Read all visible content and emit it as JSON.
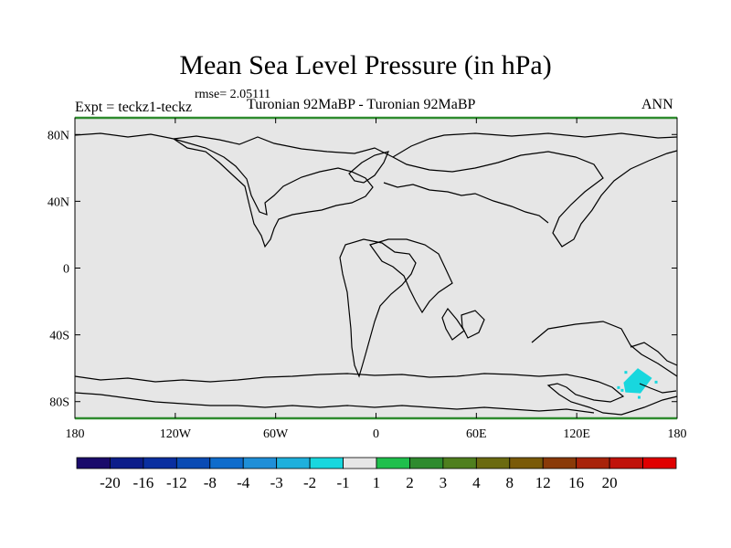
{
  "header": {
    "title": "Mean Sea Level Pressure (in hPa)",
    "rmse": "rmse= 2.05111",
    "experiment": "Expt = teckz1-teckz",
    "comparison": "Turonian  92MaBP - Turonian  92MaBP",
    "season": "ANN"
  },
  "chart_data": {
    "type": "heatmap",
    "title": "Mean Sea Level Pressure (in hPa)",
    "xlim": [
      -180,
      180
    ],
    "ylim": [
      -90,
      90
    ],
    "x_ticks": [
      {
        "value": -180,
        "label": "180"
      },
      {
        "value": -120,
        "label": "120W"
      },
      {
        "value": -60,
        "label": "60W"
      },
      {
        "value": 0,
        "label": "0"
      },
      {
        "value": 60,
        "label": "60E"
      },
      {
        "value": 120,
        "label": "120E"
      },
      {
        "value": 180,
        "label": "180"
      }
    ],
    "y_ticks": [
      {
        "value": 80,
        "label": "80N"
      },
      {
        "value": 40,
        "label": "40N"
      },
      {
        "value": 0,
        "label": "0"
      },
      {
        "value": -40,
        "label": "40S"
      },
      {
        "value": -80,
        "label": "80S"
      }
    ],
    "background_bin": "-1 to 1",
    "anomaly_region": {
      "bin": "-2 to -1",
      "lon_range": [
        148,
        165
      ],
      "lat_range": [
        -75,
        -60
      ]
    },
    "colorbar": {
      "colors": [
        "#1a0a6b",
        "#0c1d8a",
        "#0a2fa0",
        "#0a4bb4",
        "#0f6ccc",
        "#1f8fd8",
        "#1eb0dc",
        "#18d7de",
        "#e6e6e6",
        "#1fbf4c",
        "#2e8b2e",
        "#4f7f1e",
        "#6b6a10",
        "#7a5a08",
        "#8a3a08",
        "#a8230a",
        "#c0120a",
        "#e00000"
      ],
      "labels": [
        "-20",
        "-16",
        "-12",
        "-8",
        "-4",
        "-3",
        "-2",
        "-1",
        "1",
        "2",
        "3",
        "4",
        "8",
        "12",
        "16",
        "20"
      ]
    }
  }
}
